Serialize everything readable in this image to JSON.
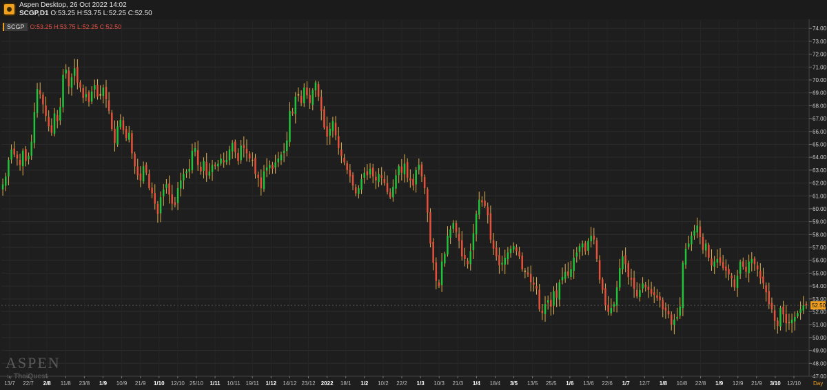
{
  "window": {
    "title": "Aspen Desktop, 26 Oct 2022 14:02",
    "symbol_tf": "SCGP,D1",
    "ohlc_line": "O:53.25 H:53.75 L:52.25 C:52.50"
  },
  "legend": {
    "symbol": "SCGP",
    "ohlc": "O:53.25 H:53.75 L:52.25 C:52.50"
  },
  "watermark": {
    "brand": "ASPEN",
    "by": "by",
    "maker": "ThaiQuest"
  },
  "colors": {
    "up": "#22c23a",
    "down": "#e8503a",
    "doji": "#e0b050",
    "background": "#1e1e1e",
    "price_tag": "#f0a020"
  },
  "chart_data": {
    "type": "candlestick",
    "symbol": "SCGP",
    "timeframe": "D1",
    "ylim": [
      47,
      74.6
    ],
    "y_ticks": [
      "74.00",
      "73.00",
      "72.00",
      "71.00",
      "70.00",
      "69.00",
      "68.00",
      "67.00",
      "66.00",
      "65.00",
      "64.00",
      "63.00",
      "62.00",
      "61.00",
      "60.00",
      "59.00",
      "58.00",
      "57.00",
      "56.00",
      "55.00",
      "54.00",
      "53.00",
      "52.00",
      "51.00",
      "50.00",
      "49.00",
      "48.00",
      "47.00"
    ],
    "x_ticks": [
      "13/7",
      "22/7",
      "2/8",
      "11/8",
      "23/8",
      "1/9",
      "10/9",
      "21/9",
      "1/10",
      "12/10",
      "25/10",
      "1/11",
      "10/11",
      "19/11",
      "1/12",
      "14/12",
      "23/12",
      "2022",
      "18/1",
      "1/2",
      "10/2",
      "22/2",
      "1/3",
      "10/3",
      "21/3",
      "1/4",
      "18/4",
      "3/5",
      "13/5",
      "25/5",
      "1/6",
      "13/6",
      "22/6",
      "1/7",
      "12/7",
      "1/8",
      "10/8",
      "22/8",
      "1/9",
      "12/9",
      "21/9",
      "3/10",
      "12/10"
    ],
    "x_tick_bold": [
      "2/8",
      "1/9",
      "1/10",
      "1/11",
      "1/12",
      "2022",
      "1/2",
      "1/3",
      "1/4",
      "3/5",
      "1/6",
      "1/7",
      "1/8",
      "1/9",
      "3/10"
    ],
    "x_axis_label": "Day",
    "last_price": "52.50",
    "closes": [
      61.9,
      62.5,
      63.8,
      64.6,
      64.2,
      63.9,
      63.4,
      64.5,
      63.7,
      64.1,
      65.2,
      67.5,
      69.3,
      68.9,
      68.1,
      67.2,
      66.4,
      65.9,
      67.4,
      66.8,
      67.9,
      70.4,
      70.8,
      69.5,
      70.2,
      70.9,
      69.8,
      69.4,
      68.6,
      68.9,
      68.3,
      69.1,
      69.6,
      68.7,
      68.9,
      69.4,
      68.5,
      67.6,
      66.2,
      65.1,
      66.4,
      66.9,
      66.1,
      65.5,
      65.9,
      64.3,
      63.3,
      62.6,
      62.2,
      63.3,
      62.8,
      61.6,
      61.2,
      60.4,
      59.6,
      60.9,
      61.5,
      61.9,
      61.1,
      60.4,
      60.3,
      61.6,
      62.2,
      62.7,
      62.9,
      63.1,
      64.5,
      64.7,
      63.4,
      62.9,
      63.7,
      62.6,
      62.9,
      63.4,
      63.3,
      63.5,
      63.9,
      63.6,
      63.8,
      64.6,
      65.1,
      64.4,
      63.7,
      64.9,
      64.7,
      64.3,
      63.9,
      63.8,
      62.7,
      62.4,
      61.6,
      62.9,
      63.2,
      63.4,
      63.1,
      63.6,
      63.9,
      64.2,
      64.5,
      65.3,
      67.6,
      67.4,
      68.7,
      68.9,
      68.2,
      69.4,
      68.8,
      68.2,
      69.2,
      69.8,
      68.7,
      67.6,
      66.3,
      65.6,
      66.2,
      66.8,
      65.7,
      64.7,
      64.1,
      63.6,
      63.0,
      62.5,
      61.8,
      61.2,
      61.6,
      62.3,
      62.8,
      62.6,
      63.1,
      62.5,
      62.2,
      62.7,
      62.4,
      62.0,
      61.3,
      60.9,
      61.7,
      62.6,
      63.3,
      62.8,
      63.5,
      62.4,
      62.2,
      61.8,
      63.0,
      63.4,
      62.5,
      61.6,
      59.7,
      57.3,
      55.8,
      54.4,
      54.0,
      55.9,
      56.5,
      57.9,
      58.4,
      58.9,
      58.2,
      57.5,
      56.3,
      56.1,
      55.7,
      56.7,
      58.1,
      59.6,
      60.7,
      60.5,
      60.2,
      59.5,
      57.6,
      56.9,
      56.3,
      55.6,
      55.8,
      56.2,
      56.6,
      56.9,
      57.1,
      56.7,
      56.3,
      55.3,
      55.1,
      54.9,
      54.3,
      54.1,
      53.8,
      52.2,
      51.9,
      52.6,
      52.9,
      52.4,
      53.6,
      53.1,
      54.3,
      54.7,
      55.1,
      54.8,
      55.3,
      56.2,
      56.6,
      57.1,
      57.3,
      56.7,
      57.5,
      57.9,
      57.6,
      56.1,
      54.5,
      53.7,
      52.5,
      52.0,
      52.3,
      52.6,
      53.9,
      55.4,
      56.3,
      55.7,
      54.7,
      54.5,
      53.8,
      53.2,
      53.7,
      54.2,
      53.9,
      53.7,
      53.4,
      53.3,
      53.1,
      52.9,
      52.2,
      52.1,
      51.8,
      51.0,
      51.4,
      51.6,
      52.4,
      55.8,
      56.9,
      57.3,
      57.9,
      58.3,
      58.7,
      57.8,
      56.8,
      57.3,
      56.2,
      55.6,
      55.9,
      56.1,
      55.8,
      55.4,
      55.2,
      54.9,
      54.6,
      53.9,
      54.8,
      55.9,
      55.5,
      55.1,
      55.9,
      56.1,
      55.7,
      55.3,
      54.6,
      54.2,
      53.5,
      52.6,
      52.2,
      51.3,
      50.9,
      52.3,
      51.8,
      51.1,
      51.2,
      51.4,
      51.6,
      51.9,
      52.2,
      52.5,
      52.5
    ]
  }
}
